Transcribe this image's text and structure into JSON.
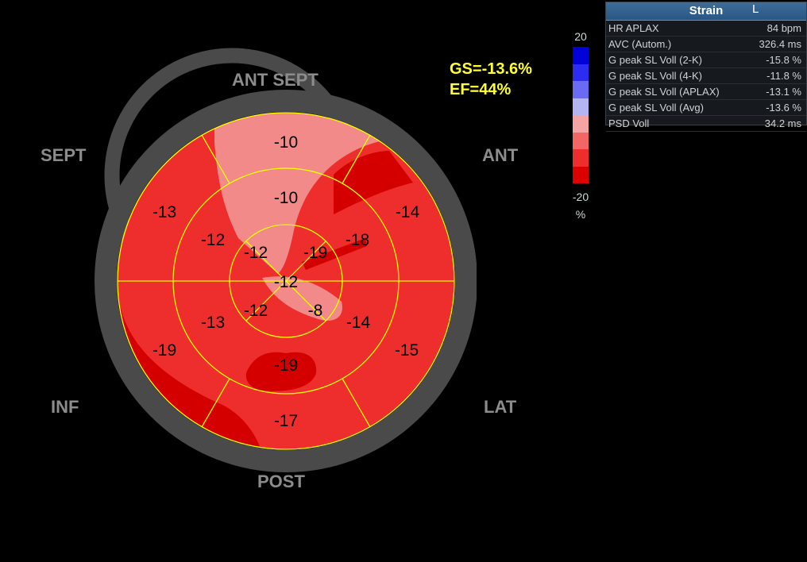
{
  "bullseye": {
    "global_strain": "GS=-13.6%",
    "ejection_fraction": "EF=44%",
    "segments": [
      {
        "id": "basal-ant-sept",
        "value": "-10"
      },
      {
        "id": "basal-ant",
        "value": "-14"
      },
      {
        "id": "basal-lat",
        "value": "-15"
      },
      {
        "id": "basal-post",
        "value": "-17"
      },
      {
        "id": "basal-inf",
        "value": "-19"
      },
      {
        "id": "basal-sept",
        "value": "-13"
      },
      {
        "id": "mid-ant-sept",
        "value": "-10"
      },
      {
        "id": "mid-ant",
        "value": "-18"
      },
      {
        "id": "mid-lat",
        "value": "-14"
      },
      {
        "id": "mid-post",
        "value": "-19"
      },
      {
        "id": "mid-inf",
        "value": "-13"
      },
      {
        "id": "mid-sept",
        "value": "-12"
      },
      {
        "id": "apical-sept",
        "value": "-12"
      },
      {
        "id": "apical-ant",
        "value": "-19"
      },
      {
        "id": "apical-lat",
        "value": "-8"
      },
      {
        "id": "apical-inf",
        "value": "-12"
      },
      {
        "id": "apex",
        "value": "-12"
      }
    ],
    "wall_labels": {
      "ant_sept": "ANT  SEPT",
      "ant": "ANT",
      "lat": "LAT",
      "post": "POST",
      "inf": "INF",
      "sept": "SEPT"
    }
  },
  "color_scale": {
    "max": "20",
    "min": "-20",
    "unit": "%",
    "colors": [
      "#0000d8",
      "#2d2df2",
      "#6a6af2",
      "#b4b4f2",
      "#f4a4a4",
      "#f26666",
      "#ee2d2d",
      "#dd0000"
    ]
  },
  "strain_panel": {
    "title": "Strain",
    "cursor_glyph": "L",
    "rows": [
      {
        "label": "HR APLAX",
        "value": "84 bpm"
      },
      {
        "label": "AVC (Autom.)",
        "value": "326.4 ms"
      },
      {
        "label": "G peak SL Voll (2-K)",
        "value": "-15.8 %"
      },
      {
        "label": "G peak SL Voll (4-K)",
        "value": "-11.8 %"
      },
      {
        "label": "G peak SL Voll (APLAX)",
        "value": "-13.1 %"
      },
      {
        "label": "G peak SL Voll (Avg)",
        "value": "-13.6 %"
      },
      {
        "label": "PSD Voll",
        "value": "34.2 ms"
      }
    ]
  }
}
